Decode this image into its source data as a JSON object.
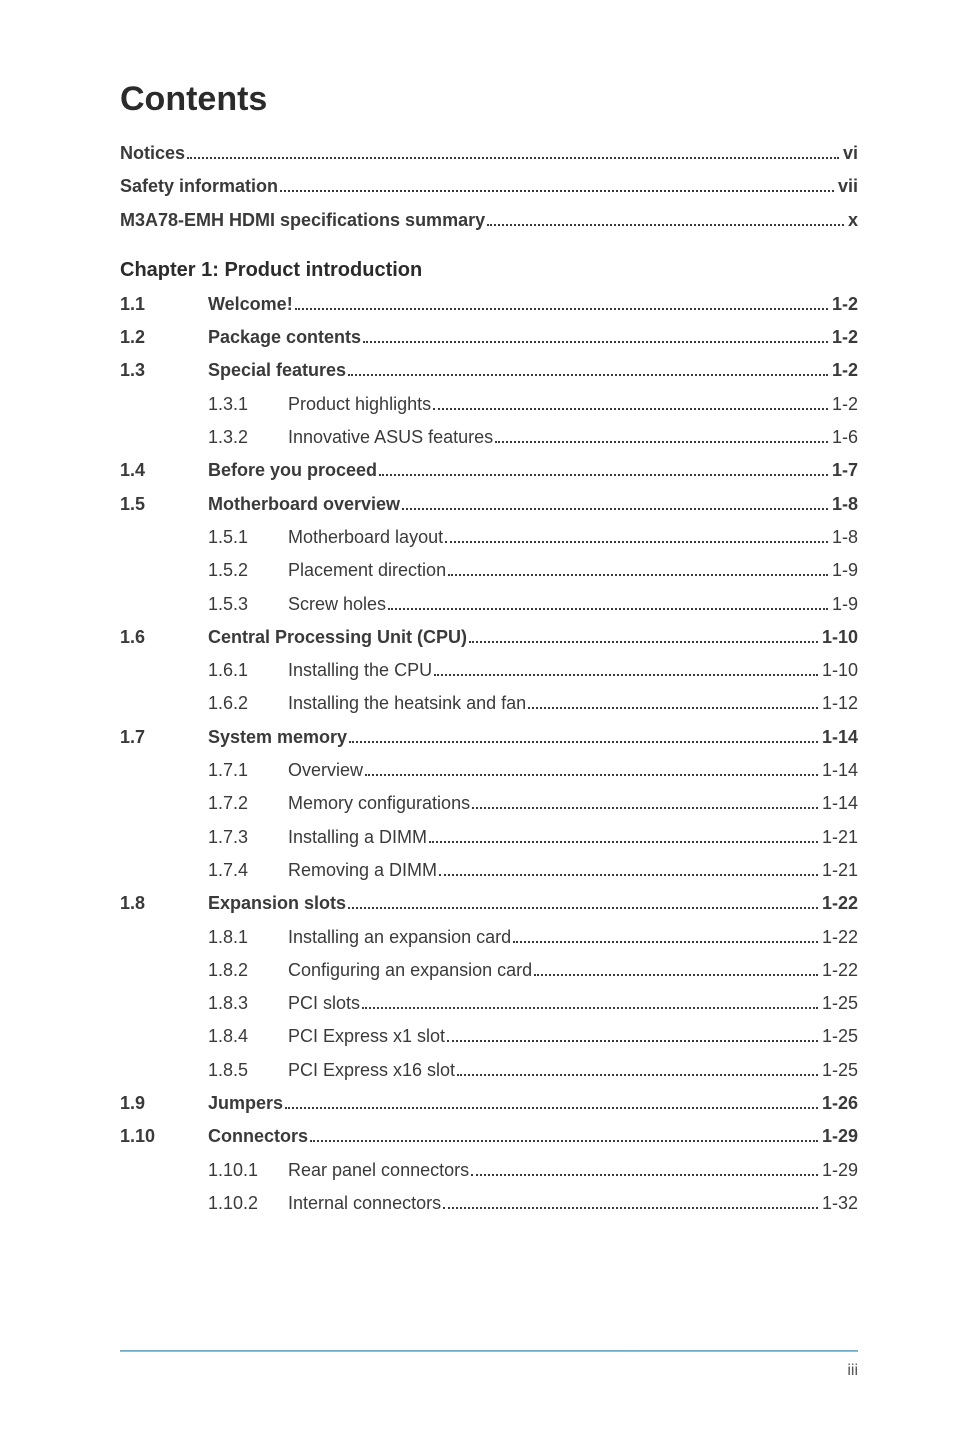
{
  "colors": {
    "text": "#3a3a3a",
    "heading": "#2b2b2b",
    "dots": "#3a3a3a",
    "footer_line_top": "#5fa4c9",
    "footer_line_bottom": "#9cc6de",
    "background": "#ffffff"
  },
  "title": "Contents",
  "front_matter": [
    {
      "label": "Notices",
      "page": "vi"
    },
    {
      "label": "Safety information",
      "page": "vii"
    },
    {
      "label": "M3A78-EMH HDMI specifications summary",
      "page": "x"
    }
  ],
  "chapter_heading": "Chapter 1: Product introduction",
  "sections": [
    {
      "num": "1.1",
      "label": "Welcome!",
      "page": "1-2",
      "subs": []
    },
    {
      "num": "1.2",
      "label": "Package contents",
      "page": "1-2",
      "subs": []
    },
    {
      "num": "1.3",
      "label": "Special features",
      "page": "1-2",
      "subs": [
        {
          "num": "1.3.1",
          "label": "Product highlights",
          "page": "1-2"
        },
        {
          "num": "1.3.2",
          "label": "Innovative ASUS features",
          "page": "1-6"
        }
      ]
    },
    {
      "num": "1.4",
      "label": "Before you proceed",
      "page": "1-7",
      "subs": []
    },
    {
      "num": "1.5",
      "label": "Motherboard overview",
      "page": "1-8",
      "subs": [
        {
          "num": "1.5.1",
          "label": "Motherboard layout",
          "page": "1-8"
        },
        {
          "num": "1.5.2",
          "label": "Placement direction",
          "page": "1-9"
        },
        {
          "num": "1.5.3",
          "label": "Screw holes",
          "page": "1-9"
        }
      ]
    },
    {
      "num": "1.6",
      "label": "Central Processing Unit (CPU)",
      "page": "1-10",
      "subs": [
        {
          "num": "1.6.1",
          "label": "Installing the CPU",
          "page": "1-10"
        },
        {
          "num": "1.6.2",
          "label": "Installing the heatsink and fan",
          "page": "1-12"
        }
      ]
    },
    {
      "num": "1.7",
      "label": "System memory",
      "page": "1-14",
      "subs": [
        {
          "num": "1.7.1",
          "label": "Overview",
          "page": "1-14"
        },
        {
          "num": "1.7.2",
          "label": "Memory configurations",
          "page": "1-14"
        },
        {
          "num": "1.7.3",
          "label": "Installing a DIMM",
          "page": "1-21"
        },
        {
          "num": "1.7.4",
          "label": "Removing a DIMM",
          "page": "1-21"
        }
      ]
    },
    {
      "num": "1.8",
      "label": "Expansion slots",
      "page": "1-22",
      "subs": [
        {
          "num": "1.8.1",
          "label": "Installing an expansion card",
          "page": "1-22"
        },
        {
          "num": "1.8.2",
          "label": "Configuring an expansion card",
          "page": "1-22"
        },
        {
          "num": "1.8.3",
          "label": "PCI slots",
          "page": "1-25"
        },
        {
          "num": "1.8.4",
          "label": "PCI Express x1 slot",
          "page": "1-25"
        },
        {
          "num": "1.8.5",
          "label": "PCI Express x16 slot",
          "page": "1-25"
        }
      ]
    },
    {
      "num": "1.9",
      "label": "Jumpers",
      "page": "1-26",
      "subs": []
    },
    {
      "num": "1.10",
      "label": "Connectors",
      "page": "1-29",
      "subs": [
        {
          "num": "1.10.1",
          "label": "Rear panel connectors",
          "page": "1-29"
        },
        {
          "num": "1.10.2",
          "label": "Internal connectors",
          "page": "1-32"
        }
      ]
    }
  ],
  "footer_page_number": "iii"
}
